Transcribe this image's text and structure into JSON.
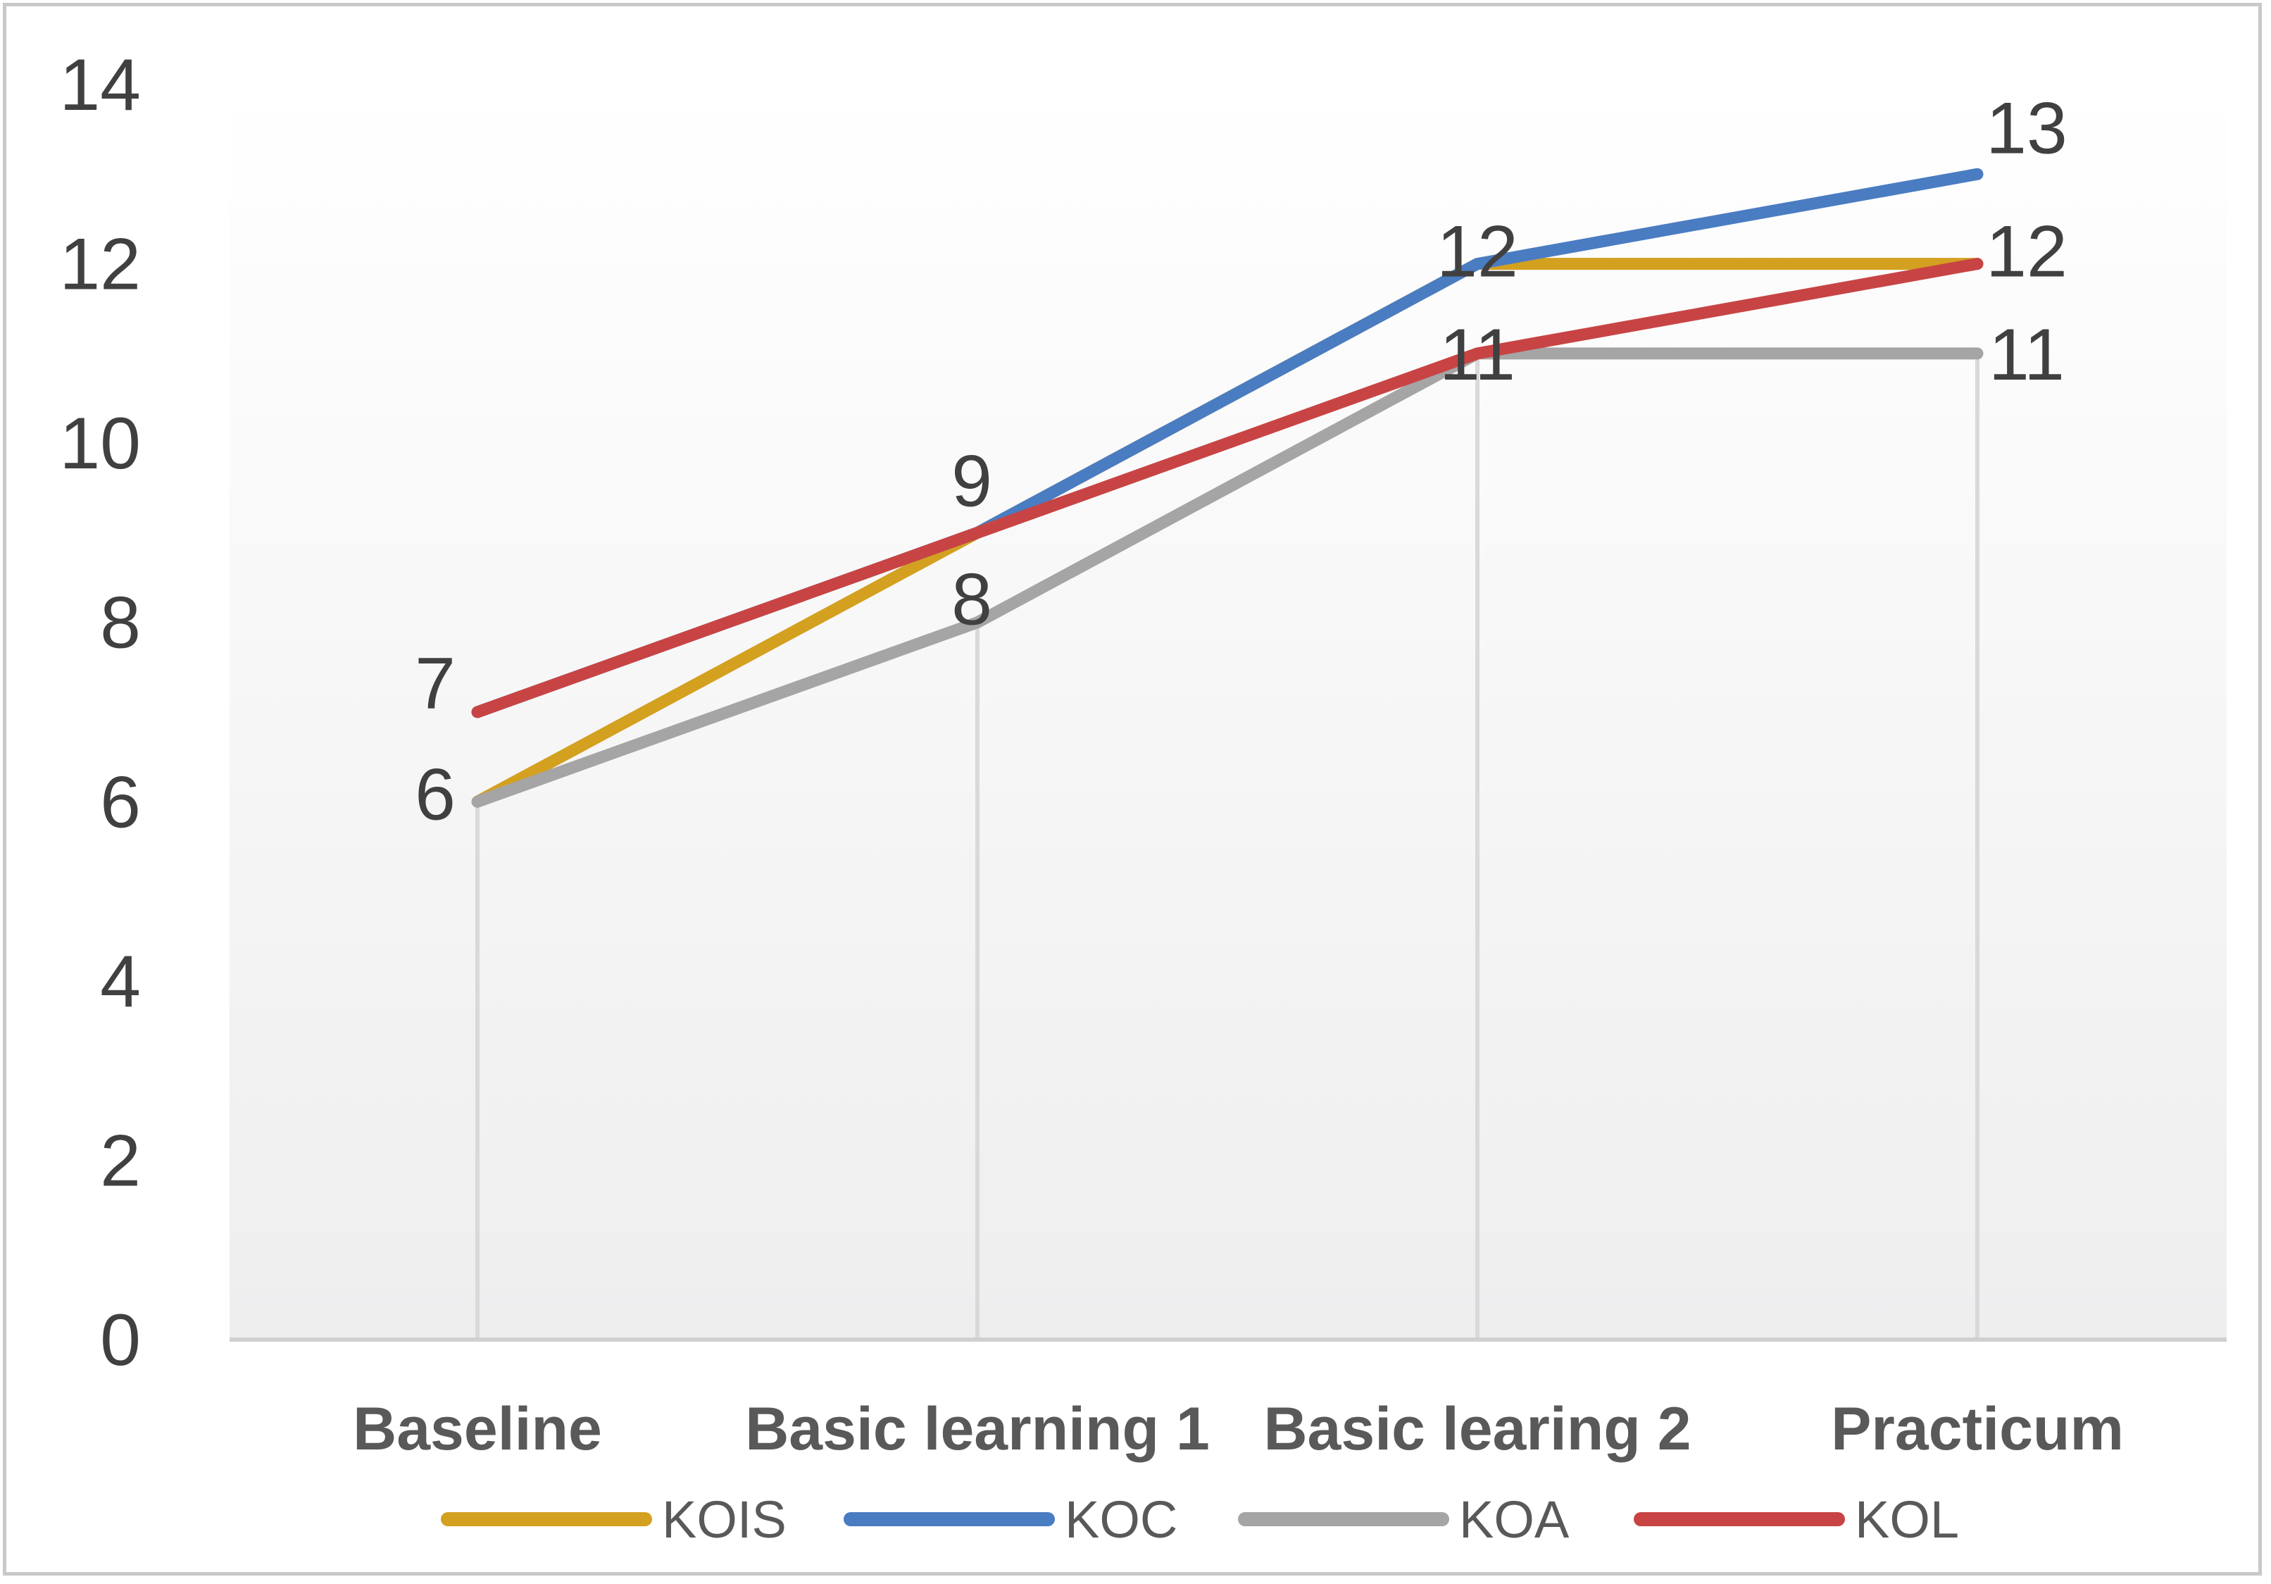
{
  "chart_data": {
    "type": "line",
    "title": "",
    "xlabel": "",
    "ylabel": "",
    "categories": [
      "Baseline",
      "Basic learning 1",
      "Basic learing 2",
      "Practicum"
    ],
    "ylim": [
      0,
      14
    ],
    "yticks": [
      0,
      2,
      4,
      6,
      8,
      10,
      12,
      14
    ],
    "grid": "vertical",
    "legend_position": "bottom",
    "series": [
      {
        "name": "KOIS",
        "color": "#D4A020",
        "values": [
          6,
          9,
          12,
          12
        ]
      },
      {
        "name": "KOC",
        "color": "#4A7CC2",
        "values": [
          7,
          9,
          12,
          13
        ]
      },
      {
        "name": "KOA",
        "color": "#A5A5A5",
        "values": [
          6,
          8,
          11,
          11
        ]
      },
      {
        "name": "KOL",
        "color": "#C84444",
        "values": [
          7,
          9,
          11,
          12
        ]
      }
    ],
    "data_labels": [
      {
        "category_index": 0,
        "text": "7",
        "value": 7
      },
      {
        "category_index": 0,
        "text": "6",
        "value": 6
      },
      {
        "category_index": 1,
        "text": "9",
        "value": 9
      },
      {
        "category_index": 1,
        "text": "8",
        "value": 8
      },
      {
        "category_index": 2,
        "text": "12",
        "value": 12
      },
      {
        "category_index": 2,
        "text": "11",
        "value": 11
      },
      {
        "category_index": 3,
        "text": "13",
        "value": 13
      },
      {
        "category_index": 3,
        "text": "12",
        "value": 12
      },
      {
        "category_index": 3,
        "text": "11",
        "value": 11
      }
    ]
  }
}
